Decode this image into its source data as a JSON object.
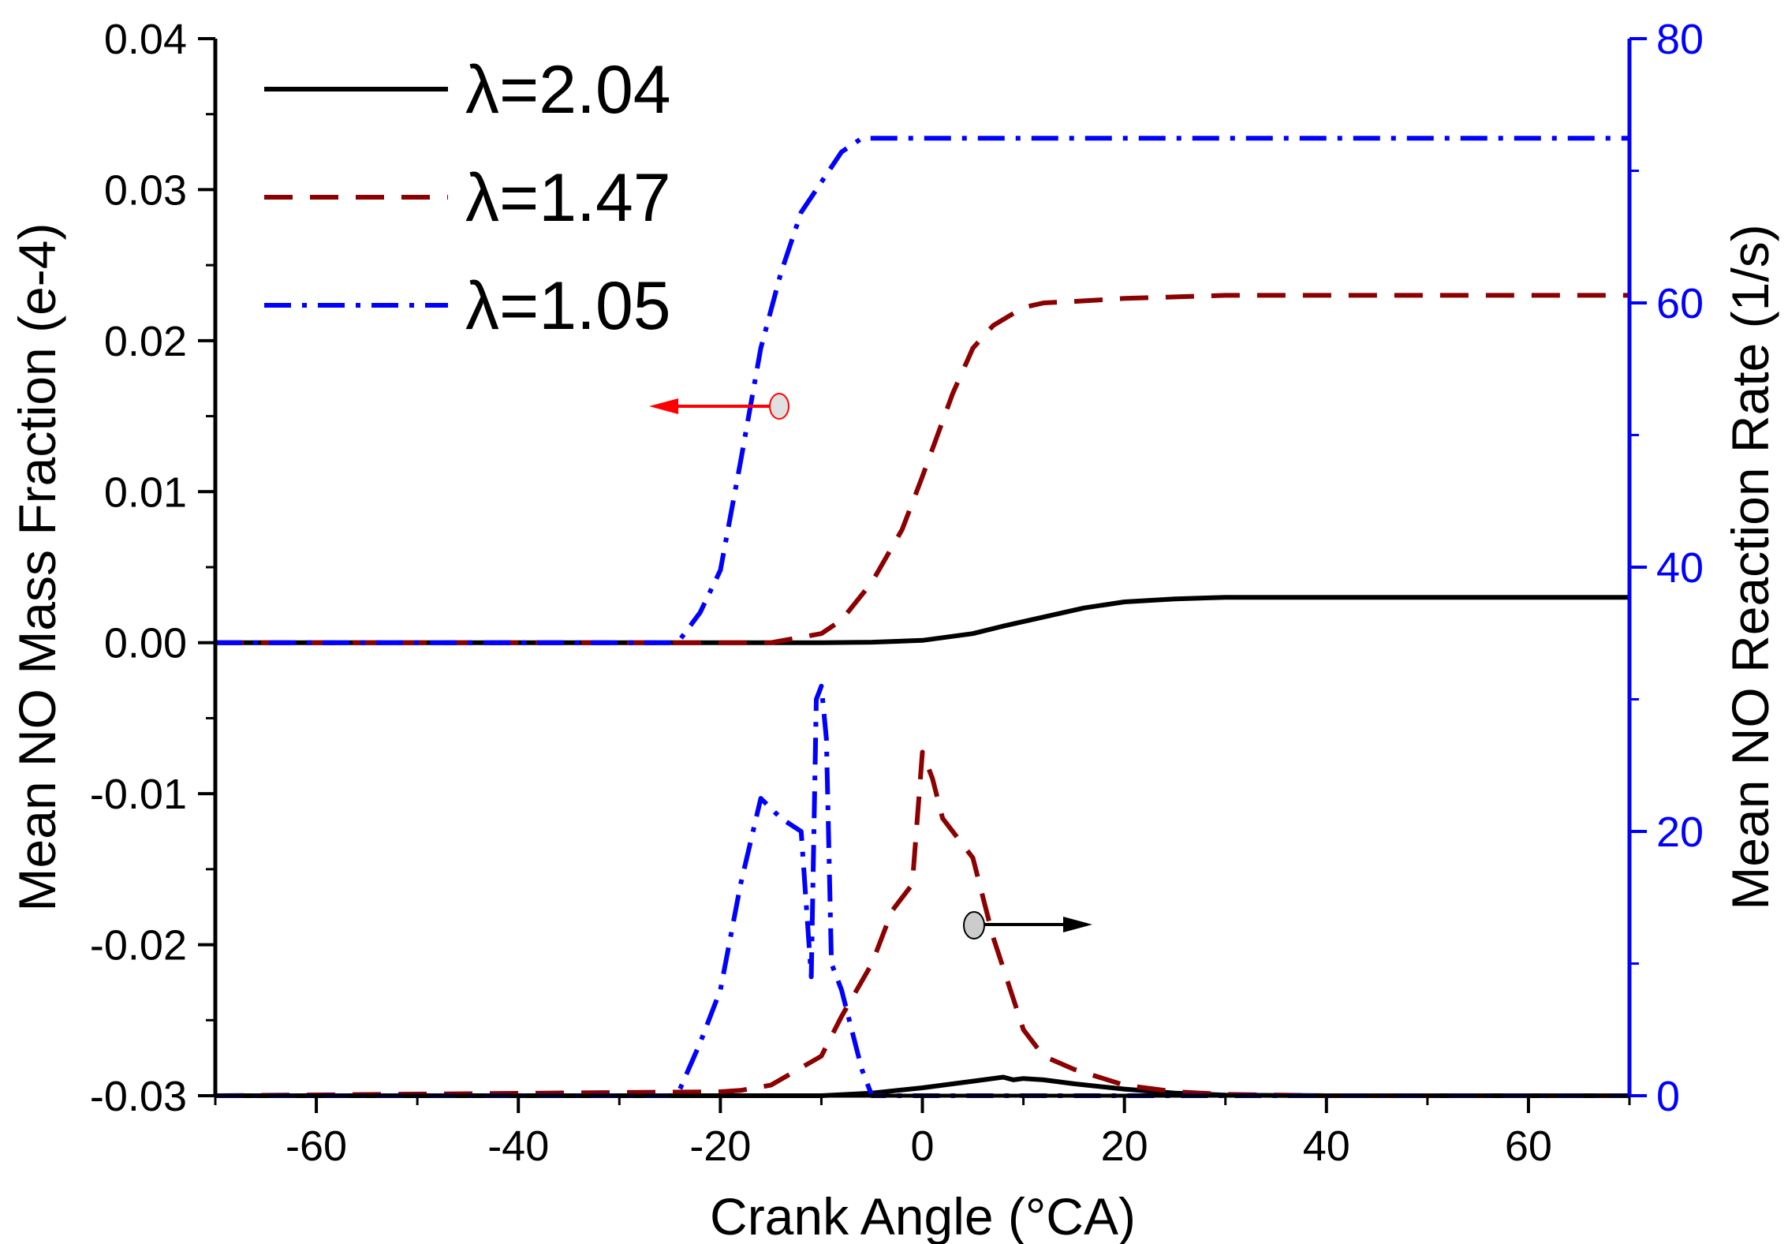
{
  "chart_data": {
    "type": "line",
    "title": "",
    "xlabel": "Crank Angle (°CA)",
    "ylabel_left": "Mean NO Mass Fraction (e-4)",
    "ylabel_right": "Mean NO Reaction Rate (1/s)",
    "xlim": [
      -70,
      70
    ],
    "ylim_left": [
      -0.03,
      0.04
    ],
    "ylim_right": [
      0,
      80
    ],
    "x_ticks": [
      "-60",
      "-40",
      "-20",
      "0",
      "20",
      "40",
      "60"
    ],
    "x_tick_values": [
      -60,
      -40,
      -20,
      0,
      20,
      40,
      60
    ],
    "y_left_ticks": [
      "0.04",
      "0.03",
      "0.02",
      "0.01",
      "0.00",
      "-0.01",
      "-0.02",
      "-0.03"
    ],
    "y_left_tick_values": [
      0.04,
      0.03,
      0.02,
      0.01,
      0.0,
      -0.01,
      -0.02,
      -0.03
    ],
    "y_right_ticks": [
      "80",
      "60",
      "40",
      "20",
      "0"
    ],
    "y_right_tick_values": [
      80,
      60,
      40,
      20,
      0
    ],
    "grid": false,
    "legend_position": "top-left",
    "colors": {
      "lambda_2_04": "#000000",
      "lambda_1_47": "#8b0000",
      "lambda_1_05": "#0000ff",
      "right_axis": "#0000ff",
      "arrow_left": "#ff0000",
      "arrow_right": "#000000"
    },
    "series": [
      {
        "name": "λ=2.04",
        "key": "lambda_2_04",
        "quantity": "mass_fraction",
        "axis": "left",
        "style": "solid",
        "x": [
          -70,
          -10,
          -5,
          0,
          5,
          8,
          12,
          16,
          20,
          25,
          30,
          40,
          50,
          60,
          70
        ],
        "y": [
          0,
          0,
          3e-05,
          0.00015,
          0.0006,
          0.0011,
          0.0017,
          0.0023,
          0.0027,
          0.0029,
          0.003,
          0.003,
          0.003,
          0.003,
          0.003
        ]
      },
      {
        "name": "λ=1.47",
        "key": "lambda_1_47",
        "quantity": "mass_fraction",
        "axis": "left",
        "style": "dashed",
        "x": [
          -70,
          -20,
          -15,
          -10,
          -8,
          -5,
          -2,
          0,
          3,
          5,
          7,
          10,
          12,
          15,
          20,
          30,
          40,
          50,
          60,
          70
        ],
        "y": [
          0,
          0,
          0,
          0.0006,
          0.0015,
          0.004,
          0.0075,
          0.011,
          0.0165,
          0.0195,
          0.021,
          0.0222,
          0.0225,
          0.0226,
          0.0228,
          0.023,
          0.023,
          0.023,
          0.023,
          0.023
        ]
      },
      {
        "name": "λ=1.05",
        "key": "lambda_1_05",
        "quantity": "mass_fraction",
        "axis": "left",
        "style": "dashdot",
        "x": [
          -70,
          -30,
          -25,
          -24,
          -22,
          -20,
          -18,
          -16,
          -14,
          -12,
          -10,
          -8,
          -6,
          0,
          10,
          30,
          50,
          70
        ],
        "y": [
          0,
          0,
          0,
          0.0002,
          0.002,
          0.0048,
          0.012,
          0.0195,
          0.0245,
          0.0285,
          0.0305,
          0.0325,
          0.0334,
          0.0334,
          0.0334,
          0.0334,
          0.0334,
          0.0334
        ]
      },
      {
        "name": "λ=2.04",
        "key": "lambda_2_04",
        "quantity": "reaction_rate",
        "axis": "right",
        "style": "solid",
        "x": [
          -70,
          -10,
          -5,
          0,
          5,
          8,
          9,
          10,
          12,
          15,
          20,
          25,
          30,
          40,
          70
        ],
        "y": [
          0,
          0,
          0.2,
          0.6,
          1.1,
          1.4,
          1.2,
          1.3,
          1.2,
          0.9,
          0.5,
          0.2,
          0.05,
          0,
          0
        ]
      },
      {
        "name": "λ=1.47",
        "key": "lambda_1_47",
        "quantity": "reaction_rate",
        "axis": "right",
        "style": "dashed",
        "x": [
          -70,
          -20,
          -18,
          -15,
          -10,
          -8,
          -5,
          -3,
          -1,
          0,
          1,
          2,
          3,
          5,
          7,
          10,
          12,
          15,
          20,
          25,
          30,
          40,
          70
        ],
        "y": [
          0,
          0.3,
          0.4,
          0.8,
          3,
          6,
          10,
          14,
          16,
          26,
          24,
          21,
          20,
          18,
          12,
          5,
          3,
          2,
          0.8,
          0.3,
          0.1,
          0,
          0
        ]
      },
      {
        "name": "λ=1.05",
        "key": "lambda_1_05",
        "quantity": "reaction_rate",
        "axis": "right",
        "style": "dashdot",
        "x": [
          -70,
          -25,
          -24,
          -22,
          -20,
          -18,
          -16,
          -14,
          -12,
          -11,
          -10.5,
          -10,
          -9.5,
          -9,
          -8,
          -6,
          -5,
          0,
          70
        ],
        "y": [
          0,
          0,
          0.5,
          4,
          8,
          16,
          22.5,
          21,
          20,
          9,
          30,
          31,
          27,
          10,
          8,
          2,
          0,
          0,
          0
        ]
      }
    ]
  }
}
